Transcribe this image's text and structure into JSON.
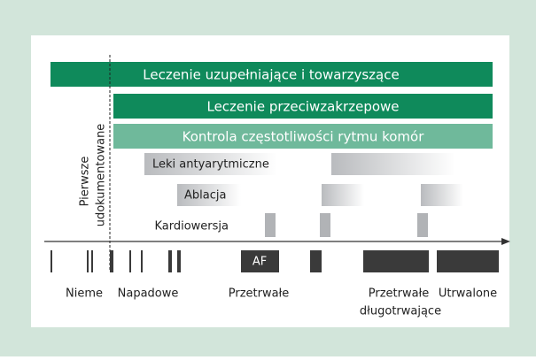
{
  "therapies": {
    "supportive": "Leczenie uzupełniające i towarzyszące",
    "anticoagulation": "Leczenie przeciwzakrzepowe",
    "rate_control": "Kontrola częstotliwości rytmu komór",
    "antiarrhythmic": "Leki antyarytmiczne",
    "ablation": "Ablacja",
    "cardioversion": "Kardiowersja"
  },
  "first_documented": [
    "Pierwsze",
    "udokumentowane"
  ],
  "af_marker": "AF",
  "stages": {
    "silent": "Nieme",
    "paroxysmal": "Napadowe",
    "persistent": "Przetrwałe",
    "long_persistent": [
      "Przetrwałe",
      "długotrwające"
    ],
    "permanent": "Utrwalone"
  }
}
